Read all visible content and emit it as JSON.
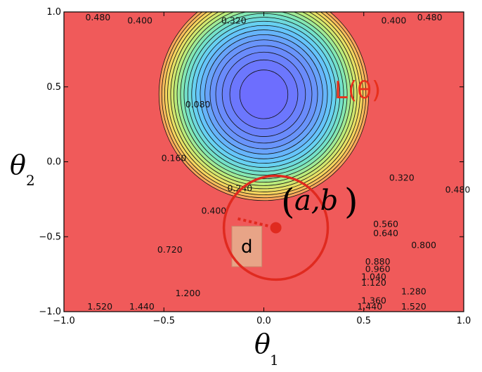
{
  "chart_data": {
    "type": "contour",
    "function_label": "L(θ)",
    "xlabel": "θ",
    "xlabel_sub": "1",
    "ylabel": "θ",
    "ylabel_sub": "2",
    "xlim": [
      -1.0,
      1.0
    ],
    "ylim": [
      -1.0,
      1.0
    ],
    "x_ticks": [
      "−1.0",
      "−0.5",
      "0.0",
      "0.5",
      "1.0"
    ],
    "y_ticks": [
      "−1.0",
      "−0.5",
      "0.0",
      "0.5",
      "1.0"
    ],
    "minimum": [
      0.0,
      0.45
    ],
    "contour_levels": [
      0.08,
      0.16,
      0.24,
      0.32,
      0.4,
      0.48,
      0.56,
      0.64,
      0.72,
      0.8,
      0.88,
      0.96,
      1.04,
      1.12,
      1.2,
      1.28,
      1.36,
      1.44,
      1.52
    ],
    "contour_labels": [
      {
        "text": "0.480",
        "x": -0.83,
        "y": 0.96
      },
      {
        "text": "0.400",
        "x": -0.62,
        "y": 0.94
      },
      {
        "text": "0.320",
        "x": -0.15,
        "y": 0.94
      },
      {
        "text": "0.400",
        "x": 0.65,
        "y": 0.94
      },
      {
        "text": "0.480",
        "x": 0.83,
        "y": 0.96
      },
      {
        "text": "0.080",
        "x": -0.33,
        "y": 0.38
      },
      {
        "text": "0.160",
        "x": -0.45,
        "y": 0.02
      },
      {
        "text": "0.240",
        "x": -0.12,
        "y": -0.18
      },
      {
        "text": "0.320",
        "x": 0.69,
        "y": -0.11
      },
      {
        "text": "0.480",
        "x": 0.97,
        "y": -0.19
      },
      {
        "text": "0.400",
        "x": -0.25,
        "y": -0.33
      },
      {
        "text": "0.560",
        "x": 0.61,
        "y": -0.42
      },
      {
        "text": "0.640",
        "x": 0.61,
        "y": -0.48
      },
      {
        "text": "0.720",
        "x": -0.47,
        "y": -0.59
      },
      {
        "text": "0.800",
        "x": 0.8,
        "y": -0.56
      },
      {
        "text": "0.880",
        "x": 0.57,
        "y": -0.67
      },
      {
        "text": "0.960",
        "x": 0.57,
        "y": -0.72
      },
      {
        "text": "1.040",
        "x": 0.55,
        "y": -0.77
      },
      {
        "text": "1.120",
        "x": 0.55,
        "y": -0.81
      },
      {
        "text": "1.200",
        "x": -0.38,
        "y": -0.88
      },
      {
        "text": "1.280",
        "x": 0.75,
        "y": -0.87
      },
      {
        "text": "1.360",
        "x": 0.55,
        "y": -0.93
      },
      {
        "text": "1.440",
        "x": 0.53,
        "y": -0.97
      },
      {
        "text": "1.440",
        "x": -0.61,
        "y": -0.97
      },
      {
        "text": "1.520",
        "x": -0.82,
        "y": -0.97
      },
      {
        "text": "1.520",
        "x": 0.75,
        "y": -0.97
      }
    ],
    "point_label": "a,b",
    "point": [
      0.06,
      -0.44
    ],
    "circle_radius": 0.26,
    "step_line_start": [
      -0.13,
      -0.38
    ],
    "box_label": "d",
    "box_range": [
      [
        -0.16,
        -0.01
      ],
      [
        -0.7,
        -0.43
      ]
    ]
  }
}
